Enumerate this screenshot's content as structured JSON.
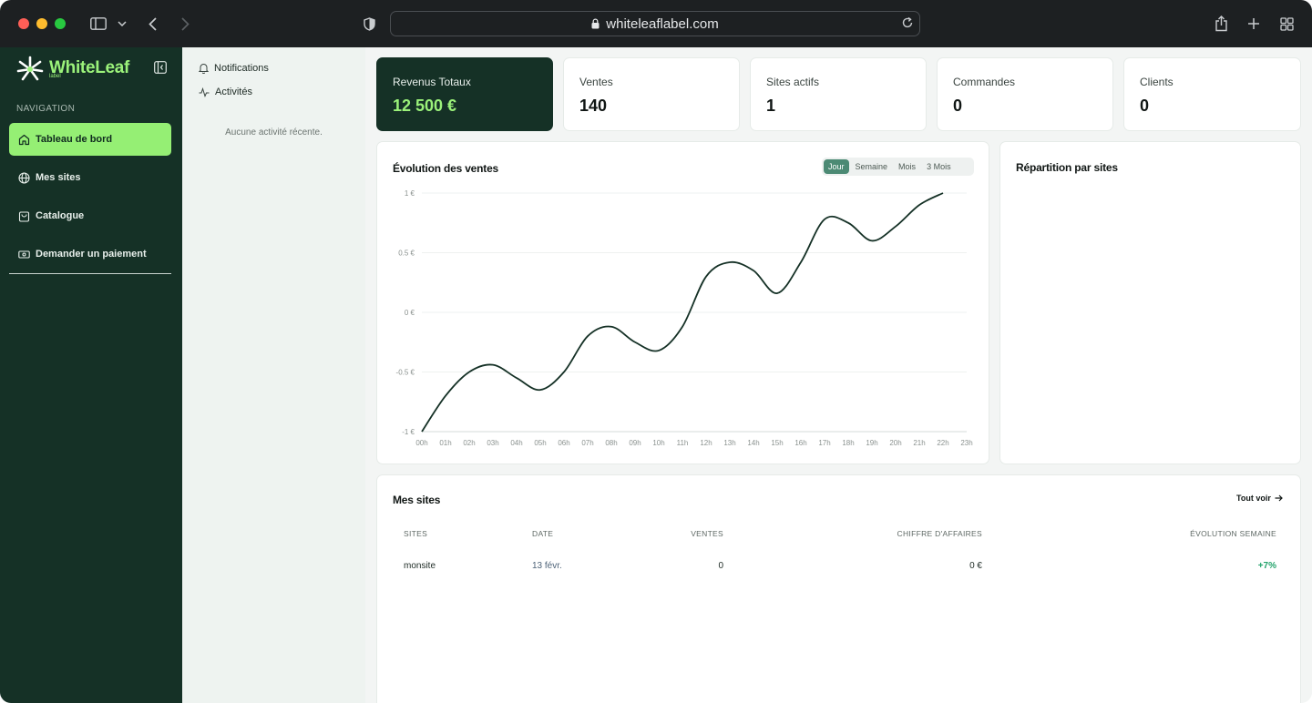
{
  "browser": {
    "url": "whiteleaflabel.com"
  },
  "sidebar": {
    "brand": "WhiteLeaf",
    "brand_sub": "label",
    "nav_heading": "NAVIGATION",
    "items": [
      {
        "label": "Tableau de bord",
        "icon": "home-icon",
        "active": true
      },
      {
        "label": "Mes sites",
        "icon": "globe-icon",
        "active": false
      },
      {
        "label": "Catalogue",
        "icon": "shopping-bag-icon",
        "active": false
      },
      {
        "label": "Demander un paiement",
        "icon": "banknote-icon",
        "active": false
      }
    ]
  },
  "activity_panel": {
    "notifications_label": "Notifications",
    "activities_label": "Activités",
    "empty_text": "Aucune activité récente."
  },
  "stats": [
    {
      "label": "Revenus Totaux",
      "value": "12 500 €",
      "highlight": true
    },
    {
      "label": "Ventes",
      "value": "140"
    },
    {
      "label": "Sites actifs",
      "value": "1"
    },
    {
      "label": "Commandes",
      "value": "0"
    },
    {
      "label": "Clients",
      "value": "0"
    }
  ],
  "sales_chart": {
    "title": "Évolution des ventes",
    "ranges": [
      "Jour",
      "Semaine",
      "Mois",
      "3 Mois"
    ],
    "active_range": "Jour"
  },
  "chart_data": {
    "type": "line",
    "title": "Évolution des ventes",
    "xlabel": "",
    "ylabel": "",
    "categories": [
      "00h",
      "01h",
      "02h",
      "03h",
      "04h",
      "05h",
      "06h",
      "07h",
      "08h",
      "09h",
      "10h",
      "11h",
      "12h",
      "13h",
      "14h",
      "15h",
      "16h",
      "17h",
      "18h",
      "19h",
      "20h",
      "21h",
      "22h",
      "23h"
    ],
    "y_ticks": [
      "-1 €",
      "-0.5 €",
      "0 €",
      "0.5 €",
      "1 €"
    ],
    "ylim": [
      -1,
      1
    ],
    "grid": true,
    "series": [
      {
        "x": [
          "00h",
          "01h",
          "02h",
          "03h",
          "04h",
          "05h",
          "06h",
          "07h",
          "08h",
          "09h",
          "10h",
          "11h",
          "12h",
          "13h",
          "14h",
          "15h",
          "16h",
          "17h",
          "18h",
          "19h",
          "20h",
          "21h",
          "22h"
        ],
        "values": [
          -1,
          -0.7,
          -0.5,
          -0.44,
          -0.55,
          -0.65,
          -0.5,
          -0.2,
          -0.12,
          -0.25,
          -0.32,
          -0.12,
          0.3,
          0.42,
          0.35,
          0.16,
          0.42,
          0.78,
          0.75,
          0.6,
          0.72,
          0.9,
          1
        ],
        "color": "#153126"
      }
    ]
  },
  "distribution": {
    "title": "Répartition par sites"
  },
  "sites_table": {
    "title": "Mes sites",
    "see_all": "Tout voir",
    "columns": [
      "SITES",
      "DATE",
      "VENTES",
      "CHIFFRE D'AFFAIRES",
      "ÉVOLUTION SEMAINE"
    ],
    "rows": [
      {
        "site": "monsite",
        "date": "13 févr.",
        "sales": "0",
        "revenue": "0 €",
        "evolution": "+7%"
      }
    ]
  },
  "colors": {
    "sidebar_bg": "#153126",
    "accent_green": "#95ef74",
    "positive": "#23a36b"
  }
}
